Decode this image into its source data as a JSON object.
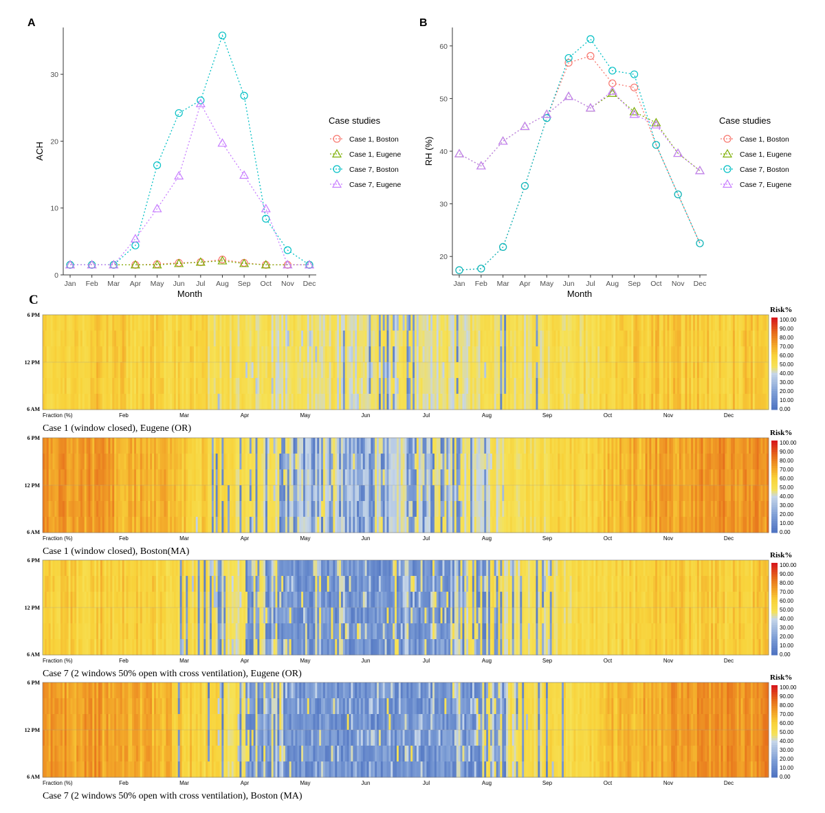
{
  "panels": {
    "a_label": "A",
    "b_label": "B",
    "c_label": "C"
  },
  "colors": {
    "case1_boston": "#F8766D",
    "case1_eugene": "#7CAE00",
    "case7_boston": "#00BFC4",
    "case7_eugene": "#C77CFF",
    "heat_low": "#4a6fbf",
    "heat_mid": "#f6e257",
    "heat_high": "#d7191c"
  },
  "chart_data": [
    {
      "type": "line",
      "id": "A",
      "title": "",
      "xlabel": "Month",
      "ylabel": "ACH",
      "categories": [
        "Jan",
        "Feb",
        "Mar",
        "Apr",
        "May",
        "Jun",
        "Jul",
        "Aug",
        "Sep",
        "Oct",
        "Nov",
        "Dec"
      ],
      "ylim": [
        0,
        37
      ],
      "yticks": [
        0,
        10,
        20,
        30
      ],
      "legend_title": "Case studies",
      "legend_position": "right",
      "series": [
        {
          "name": "Case 1, Boston",
          "marker": "circle",
          "color_key": "case1_boston",
          "values": [
            1.5,
            1.5,
            1.5,
            1.5,
            1.6,
            1.8,
            1.9,
            2.3,
            1.8,
            1.5,
            1.5,
            1.5
          ]
        },
        {
          "name": "Case 1, Eugene",
          "marker": "triangle",
          "color_key": "case1_eugene",
          "values": [
            1.5,
            1.5,
            1.5,
            1.5,
            1.5,
            1.7,
            1.9,
            2.1,
            1.7,
            1.5,
            1.5,
            1.5
          ]
        },
        {
          "name": "Case 7, Boston",
          "marker": "circle",
          "color_key": "case7_boston",
          "values": [
            1.5,
            1.5,
            1.5,
            4.4,
            16.4,
            24.2,
            26.1,
            35.8,
            26.8,
            8.4,
            3.7,
            1.5
          ]
        },
        {
          "name": "Case 7, Eugene",
          "marker": "triangle",
          "color_key": "case7_eugene",
          "values": [
            1.5,
            1.5,
            1.5,
            5.4,
            9.9,
            14.8,
            25.6,
            19.7,
            14.9,
            9.9,
            1.5,
            1.5
          ]
        }
      ]
    },
    {
      "type": "line",
      "id": "B",
      "title": "",
      "xlabel": "Month",
      "ylabel": "RH (%)",
      "categories": [
        "Jan",
        "Feb",
        "Mar",
        "Apr",
        "May",
        "Jun",
        "Jul",
        "Aug",
        "Sep",
        "Oct",
        "Nov",
        "Dec"
      ],
      "ylim": [
        16.5,
        63.5
      ],
      "yticks": [
        20,
        30,
        40,
        50,
        60
      ],
      "legend_title": "Case studies",
      "legend_position": "right",
      "series": [
        {
          "name": "Case 1, Boston",
          "marker": "circle",
          "color_key": "case1_boston",
          "values": [
            17.4,
            17.7,
            21.8,
            33.4,
            46.3,
            56.8,
            58.1,
            52.9,
            52.1,
            41.2,
            31.8,
            22.5
          ]
        },
        {
          "name": "Case 1, Eugene",
          "marker": "triangle",
          "color_key": "case1_eugene",
          "values": [
            39.5,
            37.2,
            41.9,
            44.7,
            47.0,
            50.4,
            48.2,
            51.0,
            47.5,
            45.4,
            39.6,
            36.3
          ]
        },
        {
          "name": "Case 7, Boston",
          "marker": "circle",
          "color_key": "case7_boston",
          "values": [
            17.4,
            17.7,
            21.8,
            33.4,
            46.3,
            57.7,
            61.3,
            55.3,
            54.6,
            41.2,
            31.8,
            22.5
          ]
        },
        {
          "name": "Case 7, Eugene",
          "marker": "triangle",
          "color_key": "case7_eugene",
          "values": [
            39.5,
            37.2,
            41.9,
            44.7,
            47.0,
            50.4,
            48.2,
            51.4,
            47.0,
            45.0,
            39.6,
            36.3
          ]
        }
      ]
    },
    {
      "type": "heatmap",
      "id": "C1",
      "caption": "Case 1 (window closed), Eugene (OR)",
      "y_ticks": [
        "6 PM",
        "12 PM",
        "6 AM"
      ],
      "x_first_label": "Fraction (%)",
      "x_labels": [
        "Feb",
        "Mar",
        "Apr",
        "May",
        "Jun",
        "Jul",
        "Aug",
        "Sep",
        "Oct",
        "Nov",
        "Dec"
      ],
      "colorbar_title": "Risk%",
      "colorbar_labels": [
        "100.00",
        "90.00",
        "80.00",
        "70.00",
        "60.00",
        "50.00",
        "40.00",
        "30.00",
        "20.00",
        "10.00",
        "0.00"
      ],
      "monthly_risk": [
        58,
        60,
        57,
        52,
        47,
        46,
        45,
        47,
        50,
        53,
        62,
        60
      ],
      "blue_fraction": [
        0,
        0,
        0,
        0.04,
        0.05,
        0.07,
        0.08,
        0.06,
        0.01,
        0,
        0,
        0
      ]
    },
    {
      "type": "heatmap",
      "id": "C2",
      "caption": "Case 1 (window closed), Boston(MA)",
      "y_ticks": [
        "6 PM",
        "12 PM",
        "6 AM"
      ],
      "x_first_label": "Fraction (%)",
      "x_labels": [
        "Feb",
        "Mar",
        "Apr",
        "May",
        "Jun",
        "Jul",
        "Aug",
        "Sep",
        "Oct",
        "Nov",
        "Dec"
      ],
      "colorbar_title": "Risk%",
      "colorbar_labels": [
        "100.00",
        "90.00",
        "80.00",
        "70.00",
        "60.00",
        "50.00",
        "40.00",
        "30.00",
        "20.00",
        "10.00",
        "0.00"
      ],
      "monthly_risk": [
        75,
        72,
        66,
        55,
        45,
        42,
        43,
        44,
        52,
        58,
        70,
        75
      ],
      "blue_fraction": [
        0,
        0,
        0,
        0.05,
        0.18,
        0.22,
        0.22,
        0.15,
        0.02,
        0,
        0,
        0
      ]
    },
    {
      "type": "heatmap",
      "id": "C3",
      "caption": "Case 7 (2 windows 50% open with cross ventilation), Eugene (OR)",
      "y_ticks": [
        "6 PM",
        "12 PM",
        "6 AM"
      ],
      "x_first_label": "Fraction (%)",
      "x_labels": [
        "Feb",
        "Mar",
        "Apr",
        "May",
        "Jun",
        "Jul",
        "Aug",
        "Sep",
        "Oct",
        "Nov",
        "Dec"
      ],
      "colorbar_title": "Risk%",
      "colorbar_labels": [
        "100.00",
        "90.00",
        "80.00",
        "70.00",
        "60.00",
        "50.00",
        "40.00",
        "30.00",
        "20.00",
        "10.00",
        "0.00"
      ],
      "monthly_risk": [
        58,
        60,
        57,
        50,
        46,
        44,
        44,
        46,
        50,
        53,
        60,
        60
      ],
      "blue_fraction": [
        0,
        0,
        0,
        0.2,
        0.55,
        0.6,
        0.55,
        0.45,
        0.04,
        0,
        0,
        0
      ]
    },
    {
      "type": "heatmap",
      "id": "C4",
      "caption": "Case 7 (2 windows 50% open with cross ventilation), Boston (MA)",
      "y_ticks": [
        "6 PM",
        "12 PM",
        "6 AM"
      ],
      "x_first_label": "Fraction (%)",
      "x_labels": [
        "Feb",
        "Mar",
        "Apr",
        "May",
        "Jun",
        "Jul",
        "Aug",
        "Sep",
        "Oct",
        "Nov",
        "Dec"
      ],
      "colorbar_title": "Risk%",
      "colorbar_labels": [
        "100.00",
        "90.00",
        "80.00",
        "70.00",
        "60.00",
        "50.00",
        "40.00",
        "30.00",
        "20.00",
        "10.00",
        "0.00"
      ],
      "monthly_risk": [
        75,
        72,
        66,
        52,
        44,
        42,
        42,
        44,
        52,
        58,
        70,
        75
      ],
      "blue_fraction": [
        0,
        0,
        0,
        0.12,
        0.6,
        0.7,
        0.72,
        0.55,
        0.12,
        0,
        0,
        0
      ]
    }
  ]
}
